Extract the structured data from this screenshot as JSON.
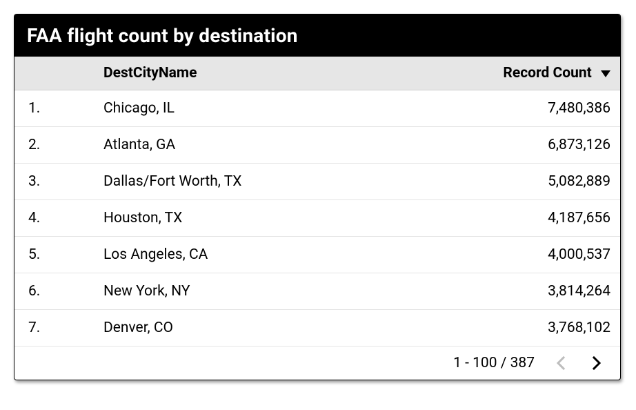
{
  "card": {
    "title": "FAA flight count by destination",
    "columns": {
      "num": "",
      "city": "DestCityName",
      "count": "Record Count"
    },
    "sort": {
      "column": "count",
      "direction": "desc"
    },
    "rows": [
      {
        "num": "1.",
        "city": "Chicago, IL",
        "count": "7,480,386"
      },
      {
        "num": "2.",
        "city": "Atlanta, GA",
        "count": "6,873,126"
      },
      {
        "num": "3.",
        "city": "Dallas/Fort Worth, TX",
        "count": "5,082,889"
      },
      {
        "num": "4.",
        "city": "Houston, TX",
        "count": "4,187,656"
      },
      {
        "num": "5.",
        "city": "Los Angeles, CA",
        "count": "4,000,537"
      },
      {
        "num": "6.",
        "city": "New York, NY",
        "count": "3,814,264"
      },
      {
        "num": "7.",
        "city": "Denver, CO",
        "count": "3,768,102"
      }
    ],
    "pager": {
      "range": "1 - 100 / 387",
      "prev_enabled": false,
      "next_enabled": true
    }
  },
  "colors": {
    "title_bg": "#000000",
    "title_fg": "#ffffff",
    "header_bg": "#e6e6e6",
    "row_border": "#e4e4e4",
    "text": "#000000",
    "disabled": "#bdbdbd"
  }
}
